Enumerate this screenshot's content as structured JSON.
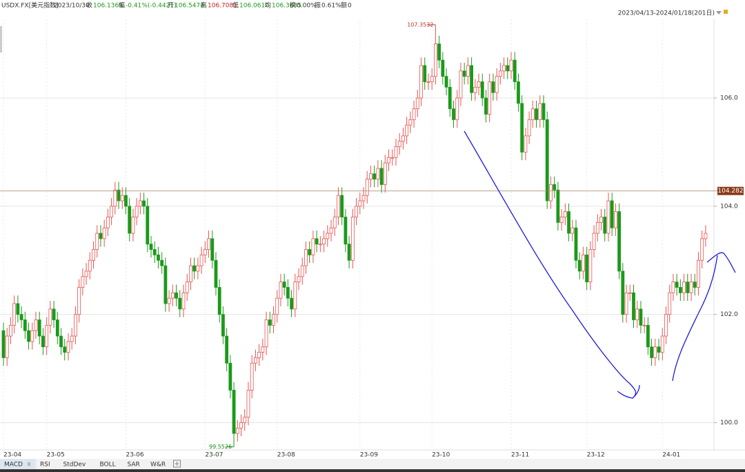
{
  "header": {
    "symbol": "USDX.FX[美元指数]",
    "date": "2023/10/30",
    "fields": [
      {
        "label": "收",
        "value": "106.1369"
      },
      {
        "label": "幅",
        "value": "-0.41%(-0.4421)"
      },
      {
        "label": "开",
        "value": "106.5478"
      },
      {
        "label": "高",
        "value": "106.7081"
      },
      {
        "label": "低",
        "value": "106.0610"
      },
      {
        "label": "均",
        "value": "106.3635"
      },
      {
        "label": "换",
        "value": "0.00%"
      },
      {
        "label": "振",
        "value": "0.61%"
      },
      {
        "label": "额",
        "value": "0"
      }
    ],
    "range": "2023/04/13-2024/01/18(201日)"
  },
  "tabs": [
    "MACD",
    "RSI",
    "StdDev",
    "BOLL",
    "SAR",
    "W&R"
  ],
  "chart_data": {
    "type": "candlestick",
    "categories": [
      "23-04",
      null,
      null,
      null,
      null,
      null,
      null,
      null,
      null,
      null,
      null,
      null,
      "23-05",
      null,
      null,
      null,
      null,
      null,
      null,
      null,
      null,
      null,
      null,
      null,
      null,
      null,
      null,
      null,
      null,
      null,
      null,
      null,
      null,
      null,
      "23-06",
      null,
      null,
      null,
      null,
      null,
      null,
      null,
      null,
      null,
      null,
      null,
      null,
      null,
      null,
      null,
      null,
      null,
      null,
      null,
      null,
      null,
      "23-07",
      null,
      null,
      null,
      null,
      null,
      null,
      null,
      null,
      null,
      null,
      null,
      null,
      null,
      null,
      null,
      null,
      null,
      null,
      null,
      "23-08",
      null,
      null,
      null,
      null,
      null,
      null,
      null,
      null,
      null,
      null,
      null,
      null,
      null,
      null,
      null,
      null,
      null,
      null,
      null,
      null,
      null,
      null,
      "23-09",
      null,
      null,
      null,
      null,
      null,
      null,
      null,
      null,
      null,
      null,
      null,
      null,
      null,
      null,
      null,
      null,
      null,
      null,
      null,
      "23-10",
      null,
      null,
      null,
      null,
      null,
      null,
      null,
      null,
      null,
      null,
      null,
      null,
      null,
      null,
      null,
      null,
      null,
      null,
      null,
      null,
      null,
      "23-11",
      null,
      null,
      null,
      null,
      null,
      null,
      null,
      null,
      null,
      null,
      null,
      null,
      null,
      null,
      null,
      null,
      null,
      null,
      null,
      null,
      "23-12",
      null,
      null,
      null,
      null,
      null,
      null,
      null,
      null,
      null,
      null,
      null,
      null,
      null,
      null,
      null,
      null,
      null,
      null,
      null,
      null,
      "24-01",
      null,
      null,
      null,
      null,
      null,
      null,
      null,
      null,
      null,
      null,
      null,
      null
    ],
    "open": [
      101.7,
      101.2,
      101.6,
      101.8,
      102.2,
      102.0,
      101.9,
      101.7,
      101.5,
      101.7,
      101.9,
      101.6,
      101.4,
      101.8,
      102.1,
      101.9,
      101.6,
      101.4,
      101.3,
      101.5,
      101.6,
      102.0,
      102.5,
      102.7,
      102.8,
      103.0,
      103.2,
      103.5,
      103.4,
      103.6,
      103.8,
      104.0,
      104.3,
      104.1,
      104.2,
      104.0,
      103.5,
      103.8,
      104.0,
      104.1,
      104.0,
      103.3,
      103.2,
      103.1,
      103.0,
      102.9,
      102.2,
      102.3,
      102.4,
      102.3,
      102.1,
      102.4,
      102.6,
      102.9,
      102.8,
      102.9,
      103.1,
      103.2,
      103.4,
      103.0,
      102.5,
      102.0,
      101.6,
      101.1,
      100.6,
      99.8,
      99.9,
      100.0,
      100.1,
      100.6,
      101.1,
      101.2,
      101.3,
      101.4,
      101.9,
      101.8,
      102.0,
      102.3,
      102.6,
      102.5,
      102.3,
      102.1,
      102.6,
      102.7,
      102.9,
      103.2,
      103.1,
      103.4,
      103.3,
      103.3,
      103.4,
      103.5,
      103.6,
      103.8,
      104.2,
      103.8,
      103.3,
      103.0,
      103.8,
      104.0,
      104.1,
      104.2,
      104.5,
      104.6,
      104.5,
      104.7,
      104.4,
      104.8,
      104.9,
      104.9,
      105.1,
      105.2,
      105.3,
      105.5,
      105.6,
      105.8,
      106.0,
      106.6,
      106.3,
      106.3,
      106.4,
      107.0,
      106.7,
      106.4,
      106.2,
      105.8,
      105.6,
      106.0,
      106.5,
      106.4,
      106.6,
      106.1,
      106.2,
      106.3,
      106.0,
      105.7,
      106.3,
      106.1,
      106.4,
      106.5,
      106.6,
      106.5,
      106.7,
      106.3,
      105.9,
      105.0,
      105.3,
      105.6,
      105.8,
      105.6,
      105.9,
      105.6,
      104.1,
      104.4,
      104.3,
      103.7,
      103.8,
      103.9,
      103.5,
      103.6,
      103.0,
      102.8,
      103.1,
      102.6,
      103.2,
      103.5,
      103.7,
      103.8,
      103.5,
      104.1,
      103.6,
      103.9,
      102.8,
      102.0,
      102.4,
      102.4,
      101.9,
      102.1,
      101.8,
      101.8,
      101.4,
      101.2,
      101.4,
      101.3,
      101.6,
      102.0,
      102.4,
      102.6,
      102.5,
      102.4,
      102.6,
      102.4,
      102.6,
      102.5,
      103.0,
      103.4
    ],
    "high": [
      101.85,
      101.75,
      101.95,
      102.35,
      102.35,
      102.15,
      102.05,
      101.85,
      101.85,
      102.05,
      102.05,
      101.75,
      101.95,
      102.25,
      102.25,
      102.05,
      101.75,
      101.55,
      101.65,
      101.75,
      102.15,
      102.65,
      102.85,
      102.95,
      103.15,
      103.35,
      103.65,
      103.65,
      103.75,
      103.95,
      104.15,
      104.45,
      104.45,
      104.35,
      104.35,
      104.15,
      103.95,
      104.15,
      104.25,
      104.25,
      104.15,
      103.45,
      103.35,
      103.25,
      103.15,
      103.05,
      102.45,
      102.55,
      102.55,
      102.45,
      102.55,
      102.75,
      103.05,
      103.05,
      103.05,
      103.25,
      103.35,
      103.55,
      103.55,
      103.15,
      102.65,
      102.15,
      101.75,
      101.25,
      100.75,
      100.05,
      100.15,
      100.25,
      100.75,
      101.25,
      101.35,
      101.45,
      101.55,
      102.05,
      102.05,
      102.15,
      102.45,
      102.75,
      102.75,
      102.65,
      102.45,
      102.75,
      102.85,
      103.05,
      103.35,
      103.35,
      103.55,
      103.55,
      103.45,
      103.55,
      103.65,
      103.75,
      103.95,
      104.35,
      104.35,
      103.95,
      103.45,
      103.95,
      104.15,
      104.25,
      104.35,
      104.65,
      104.75,
      104.75,
      104.85,
      104.85,
      104.95,
      105.05,
      105.05,
      105.25,
      105.35,
      105.45,
      105.65,
      105.75,
      105.95,
      106.15,
      106.75,
      106.75,
      106.45,
      106.55,
      107.3532,
      107.15,
      106.85,
      106.55,
      106.35,
      105.95,
      106.15,
      106.65,
      106.65,
      106.75,
      106.75,
      106.35,
      106.45,
      106.45,
      106.15,
      106.45,
      106.45,
      106.55,
      106.65,
      106.75,
      106.75,
      106.85,
      106.85,
      106.45,
      106.05,
      105.45,
      105.75,
      105.95,
      105.95,
      106.05,
      106.05,
      105.75,
      104.55,
      104.55,
      104.45,
      103.95,
      104.05,
      104.05,
      103.75,
      103.75,
      103.15,
      103.25,
      103.25,
      103.35,
      103.65,
      103.85,
      103.95,
      103.95,
      104.25,
      104.25,
      104.05,
      104.05,
      102.95,
      102.55,
      102.55,
      102.55,
      102.25,
      102.25,
      101.95,
      101.95,
      101.55,
      101.55,
      101.55,
      101.75,
      102.15,
      102.55,
      102.75,
      102.75,
      102.65,
      102.75,
      102.75,
      102.75,
      102.75,
      103.15,
      103.55,
      103.65
    ],
    "low": [
      101.05,
      101.05,
      101.45,
      101.65,
      101.85,
      101.75,
      101.55,
      101.35,
      101.35,
      101.55,
      101.45,
      101.25,
      101.25,
      101.65,
      101.75,
      101.45,
      101.25,
      101.15,
      101.15,
      101.35,
      101.45,
      101.85,
      102.35,
      102.55,
      102.65,
      102.85,
      103.05,
      103.25,
      103.25,
      103.45,
      103.65,
      103.85,
      103.95,
      103.95,
      103.85,
      103.35,
      103.35,
      103.65,
      103.85,
      103.85,
      103.15,
      103.05,
      102.95,
      102.85,
      102.75,
      102.05,
      102.05,
      102.15,
      102.15,
      101.95,
      101.95,
      102.25,
      102.45,
      102.65,
      102.65,
      102.75,
      102.95,
      103.05,
      102.85,
      102.35,
      101.85,
      101.45,
      100.95,
      100.45,
      99.5526,
      99.65,
      99.75,
      99.85,
      99.95,
      100.45,
      100.95,
      101.05,
      101.15,
      101.25,
      101.65,
      101.65,
      101.85,
      102.15,
      102.35,
      102.15,
      101.95,
      101.95,
      102.45,
      102.55,
      102.75,
      102.95,
      102.95,
      103.15,
      103.15,
      103.15,
      103.25,
      103.35,
      103.45,
      103.65,
      103.65,
      103.15,
      102.85,
      102.85,
      103.65,
      103.85,
      103.95,
      104.05,
      104.35,
      104.35,
      104.35,
      104.25,
      104.25,
      104.65,
      104.75,
      104.75,
      104.95,
      105.05,
      105.15,
      105.35,
      105.45,
      105.65,
      105.85,
      106.15,
      106.15,
      106.15,
      106.25,
      106.55,
      106.25,
      106.05,
      105.65,
      105.45,
      105.45,
      105.85,
      106.25,
      106.25,
      105.95,
      105.95,
      106.05,
      105.85,
      105.55,
      105.55,
      105.95,
      105.95,
      106.25,
      106.35,
      106.35,
      106.35,
      106.15,
      105.75,
      104.85,
      104.85,
      105.15,
      105.45,
      105.45,
      105.45,
      105.45,
      103.95,
      103.95,
      104.15,
      103.55,
      103.55,
      103.65,
      103.35,
      103.35,
      102.85,
      102.65,
      102.65,
      102.45,
      102.45,
      103.05,
      103.35,
      103.55,
      103.35,
      103.35,
      103.45,
      103.45,
      102.65,
      101.85,
      101.85,
      102.25,
      101.75,
      101.75,
      101.65,
      101.65,
      101.25,
      101.05,
      101.05,
      101.15,
      101.15,
      101.45,
      101.85,
      102.25,
      102.35,
      102.25,
      102.25,
      102.25,
      102.25,
      102.35,
      102.35,
      102.85,
      103.25
    ],
    "close": [
      101.2,
      101.6,
      101.8,
      102.2,
      102.0,
      101.9,
      101.7,
      101.5,
      101.7,
      101.9,
      101.6,
      101.4,
      101.8,
      102.1,
      101.9,
      101.6,
      101.4,
      101.3,
      101.5,
      101.6,
      102.0,
      102.5,
      102.7,
      102.8,
      103.0,
      103.2,
      103.5,
      103.4,
      103.6,
      103.8,
      104.0,
      104.3,
      104.1,
      104.2,
      104.0,
      103.5,
      103.8,
      104.0,
      104.1,
      104.0,
      103.3,
      103.2,
      103.1,
      103.0,
      102.9,
      102.2,
      102.3,
      102.4,
      102.3,
      102.1,
      102.4,
      102.6,
      102.9,
      102.8,
      102.9,
      103.1,
      103.2,
      103.4,
      103.0,
      102.5,
      102.0,
      101.6,
      101.1,
      100.6,
      99.8,
      99.9,
      100.0,
      100.1,
      100.6,
      101.1,
      101.2,
      101.3,
      101.4,
      101.9,
      101.8,
      102.0,
      102.3,
      102.6,
      102.5,
      102.3,
      102.1,
      102.6,
      102.7,
      102.9,
      103.2,
      103.1,
      103.4,
      103.3,
      103.3,
      103.4,
      103.5,
      103.6,
      103.8,
      104.2,
      103.8,
      103.3,
      103.0,
      103.8,
      104.0,
      104.1,
      104.2,
      104.5,
      104.6,
      104.5,
      104.7,
      104.4,
      104.8,
      104.9,
      104.9,
      105.1,
      105.2,
      105.3,
      105.5,
      105.6,
      105.8,
      106.0,
      106.6,
      106.3,
      106.3,
      106.4,
      107.0,
      106.7,
      106.4,
      106.2,
      105.8,
      105.6,
      106.0,
      106.5,
      106.4,
      106.6,
      106.1,
      106.2,
      106.3,
      106.0,
      105.7,
      106.3,
      106.1,
      106.4,
      106.5,
      106.6,
      106.5,
      106.7,
      106.3,
      105.9,
      105.0,
      105.3,
      105.6,
      105.8,
      105.6,
      105.9,
      105.6,
      104.1,
      104.4,
      104.3,
      103.7,
      103.8,
      103.9,
      103.5,
      103.6,
      103.0,
      102.8,
      103.1,
      102.6,
      103.2,
      103.5,
      103.7,
      103.8,
      103.5,
      104.1,
      103.6,
      103.9,
      102.8,
      102.0,
      102.4,
      102.4,
      101.9,
      102.1,
      101.8,
      101.8,
      101.4,
      101.2,
      101.4,
      101.3,
      101.6,
      102.0,
      102.4,
      102.6,
      102.5,
      102.4,
      102.6,
      102.4,
      102.6,
      102.5,
      103.0,
      103.4,
      103.5
    ],
    "up_color": "#e8524f",
    "down_color": "#1a9a1a",
    "extremes": {
      "max": 107.3532,
      "min": 99.5526
    },
    "crosshair": 104.282,
    "ylim": [
      99.45,
      107.56
    ],
    "yticks": [
      {
        "value": 100,
        "label": "100.0"
      },
      {
        "value": 102,
        "label": "102.0"
      },
      {
        "value": 104,
        "label": "104.0"
      },
      {
        "value": 106,
        "label": "106.0"
      }
    ],
    "grid": true
  }
}
